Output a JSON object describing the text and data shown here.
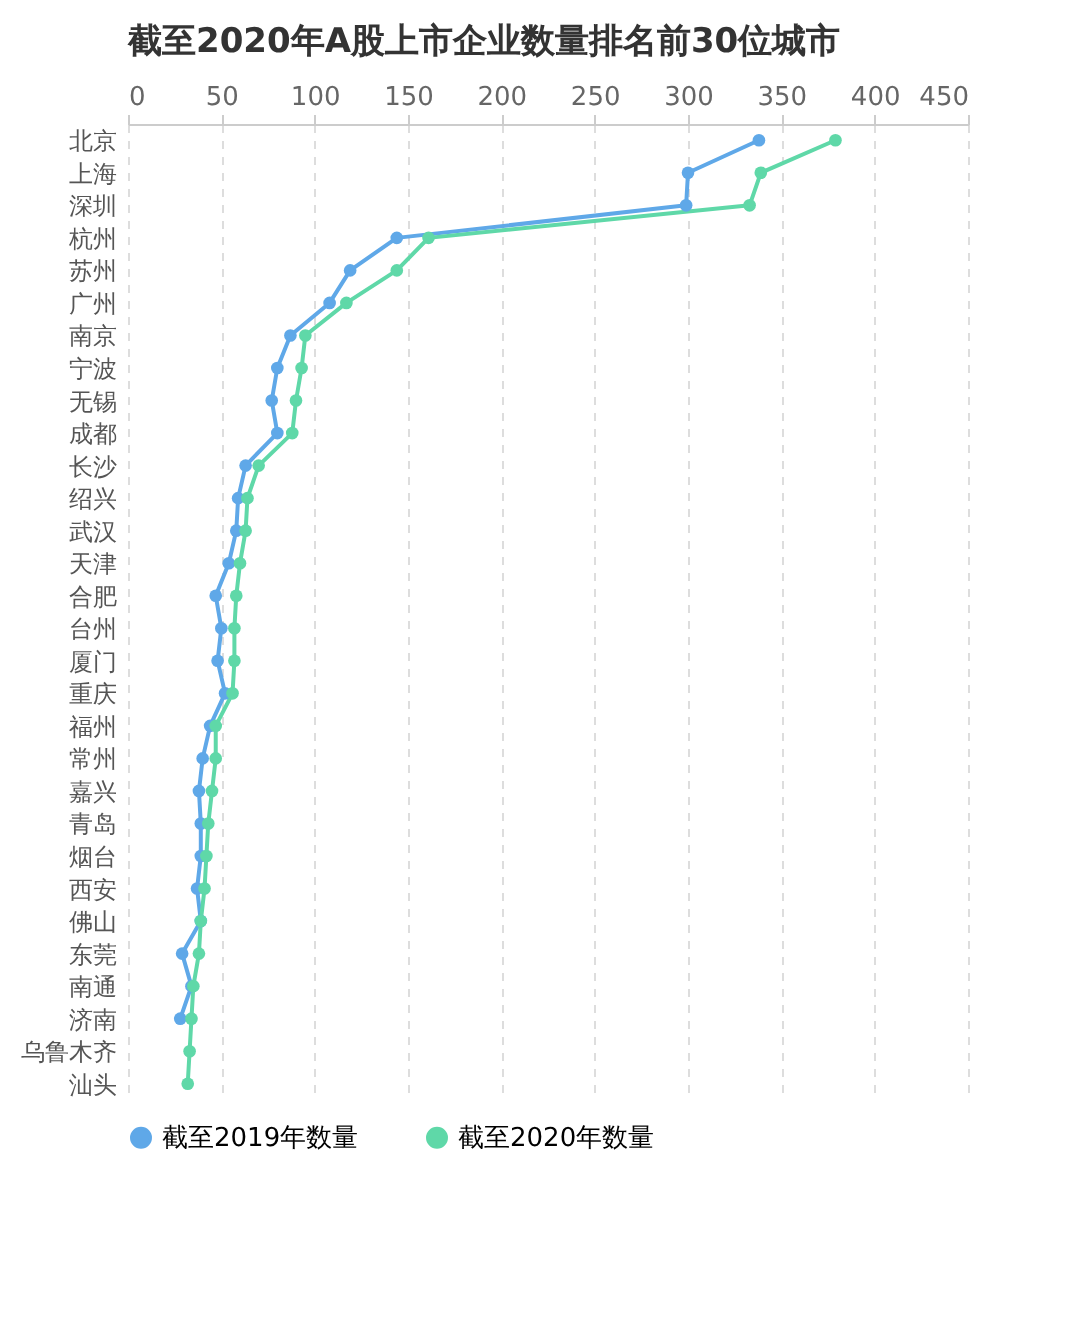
{
  "chart_data": {
    "type": "line",
    "title": "截至2020年A股上市企业数量排名前30位城市",
    "categories": [
      "北京",
      "上海",
      "深圳",
      "杭州",
      "苏州",
      "广州",
      "南京",
      "宁波",
      "无锡",
      "成都",
      "长沙",
      "绍兴",
      "武汉",
      "天津",
      "合肥",
      "台州",
      "厦门",
      "重庆",
      "福州",
      "常州",
      "嘉兴",
      "青岛",
      "烟台",
      "西安",
      "佛山",
      "东莞",
      "南通",
      "济南",
      "乌鲁木齐",
      "汕头"
    ],
    "series": [
      {
        "name": "截至2019年数量",
        "color": "#5fa8e8",
        "values": [
          338,
          300,
          299,
          144,
          119,
          108,
          87,
          80,
          77,
          80,
          63,
          59,
          58,
          54,
          47,
          50,
          48,
          52,
          44,
          40,
          38,
          39,
          39,
          37,
          39,
          29,
          34,
          28,
          null,
          null
        ]
      },
      {
        "name": "截至2020年数量",
        "color": "#5fd8a8",
        "values": [
          379,
          339,
          333,
          161,
          144,
          117,
          95,
          93,
          90,
          88,
          70,
          64,
          63,
          60,
          58,
          57,
          57,
          56,
          47,
          47,
          45,
          43,
          42,
          41,
          39,
          38,
          35,
          34,
          33,
          32
        ]
      }
    ],
    "xlim": [
      0,
      450
    ],
    "xticks": [
      0,
      50,
      100,
      150,
      200,
      250,
      300,
      350,
      400,
      450
    ],
    "orientation": "horizontal",
    "grid": "x",
    "legend": "bottom",
    "marker": "circle"
  }
}
